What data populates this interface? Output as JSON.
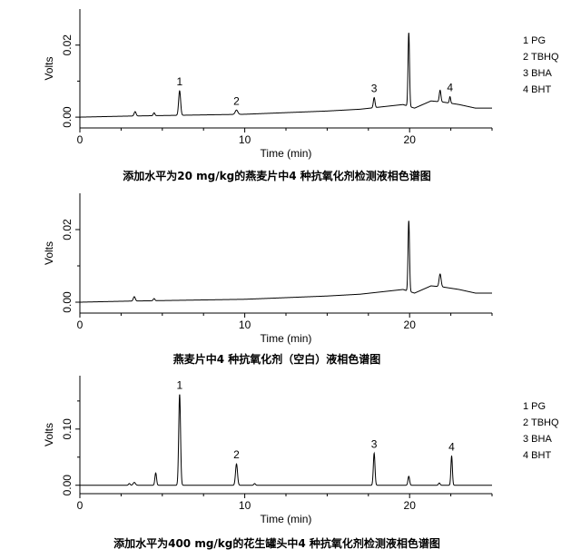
{
  "chart_data": [
    {
      "type": "line",
      "title": "添加水平为20 mg/kg的燕麦片中4 种抗氧化剂检测液相色谱图",
      "xlabel": "Time (min)",
      "ylabel": "Volts",
      "xlim": [
        0,
        25
      ],
      "ylim": [
        -0.003,
        0.03
      ],
      "xticks": [
        0,
        10,
        20
      ],
      "yticks": [
        0.0,
        0.02
      ],
      "ytick_labels": [
        "0.00",
        "0.02"
      ],
      "legend": [
        "1 PG",
        "2 TBHQ",
        "3 BHA",
        "4 BHT"
      ],
      "legend_position": "right",
      "baseline": [
        [
          0,
          0.0
        ],
        [
          3,
          0.0003
        ],
        [
          10,
          0.0008
        ],
        [
          15,
          0.0017
        ],
        [
          17,
          0.0022
        ],
        [
          19.6,
          0.0035
        ],
        [
          20.3,
          0.0025
        ],
        [
          21.3,
          0.0045
        ],
        [
          22,
          0.0042
        ],
        [
          23,
          0.0035
        ],
        [
          24,
          0.0025
        ],
        [
          25,
          0.0025
        ]
      ],
      "peaks": [
        {
          "x": 3.35,
          "height": 0.0012,
          "width": 0.06
        },
        {
          "x": 4.5,
          "height": 0.0008,
          "width": 0.05
        },
        {
          "x": 6.05,
          "height": 0.0068,
          "width": 0.06,
          "label": "1"
        },
        {
          "x": 9.5,
          "height": 0.0012,
          "width": 0.08,
          "label": "2"
        },
        {
          "x": 17.85,
          "height": 0.0028,
          "width": 0.05,
          "label": "3"
        },
        {
          "x": 19.95,
          "height": 0.0205,
          "width": 0.045
        },
        {
          "x": 21.85,
          "height": 0.0032,
          "width": 0.05
        },
        {
          "x": 22.45,
          "height": 0.0018,
          "width": 0.04,
          "label": "4"
        }
      ]
    },
    {
      "type": "line",
      "title": "燕麦片中4 种抗氧化剂（空白）液相色谱图",
      "xlabel": "Time (min)",
      "ylabel": "Volts",
      "xlim": [
        0,
        25
      ],
      "ylim": [
        -0.003,
        0.03
      ],
      "xticks": [
        0,
        10,
        20
      ],
      "yticks": [
        0.0,
        0.02
      ],
      "ytick_labels": [
        "0.00",
        "0.02"
      ],
      "baseline": [
        [
          0,
          0.0
        ],
        [
          3,
          0.0003
        ],
        [
          10,
          0.0008
        ],
        [
          15,
          0.0017
        ],
        [
          17,
          0.0022
        ],
        [
          19.6,
          0.0035
        ],
        [
          20.3,
          0.0025
        ],
        [
          21.3,
          0.0045
        ],
        [
          22,
          0.0042
        ],
        [
          23,
          0.0035
        ],
        [
          24,
          0.0025
        ],
        [
          25,
          0.0025
        ]
      ],
      "peaks": [
        {
          "x": 3.3,
          "height": 0.0012,
          "width": 0.06
        },
        {
          "x": 4.5,
          "height": 0.0006,
          "width": 0.05
        },
        {
          "x": 19.95,
          "height": 0.0195,
          "width": 0.045
        },
        {
          "x": 21.85,
          "height": 0.0035,
          "width": 0.06
        }
      ]
    },
    {
      "type": "line",
      "title": "添加水平为400 mg/kg的花生罐头中4 种抗氧化剂检测液相色谱图",
      "xlabel": "Time (min)",
      "ylabel": "Volts",
      "xlim": [
        0,
        25
      ],
      "ylim": [
        -0.015,
        0.195
      ],
      "xticks": [
        0,
        10,
        20
      ],
      "yticks": [
        0.0,
        0.1
      ],
      "ytick_labels": [
        "0.00",
        "0.10"
      ],
      "legend": [
        "1 PG",
        "2 TBHQ",
        "3 BHA",
        "4 BHT"
      ],
      "legend_position": "right",
      "baseline": [
        [
          0,
          0.0
        ],
        [
          25,
          0.0
        ]
      ],
      "peaks": [
        {
          "x": 3.0,
          "height": 0.003,
          "width": 0.05
        },
        {
          "x": 3.3,
          "height": 0.005,
          "width": 0.07
        },
        {
          "x": 4.6,
          "height": 0.022,
          "width": 0.05
        },
        {
          "x": 6.05,
          "height": 0.162,
          "width": 0.055,
          "label": "1"
        },
        {
          "x": 9.5,
          "height": 0.038,
          "width": 0.06,
          "label": "2"
        },
        {
          "x": 10.6,
          "height": 0.003,
          "width": 0.05
        },
        {
          "x": 17.85,
          "height": 0.057,
          "width": 0.05,
          "label": "3"
        },
        {
          "x": 19.95,
          "height": 0.016,
          "width": 0.05
        },
        {
          "x": 21.8,
          "height": 0.004,
          "width": 0.05
        },
        {
          "x": 22.55,
          "height": 0.052,
          "width": 0.045,
          "label": "4"
        }
      ]
    }
  ]
}
